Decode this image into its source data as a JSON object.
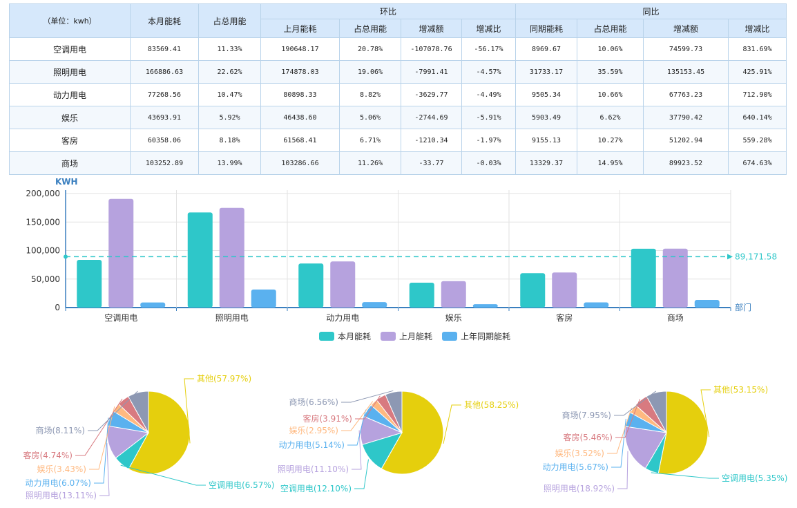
{
  "table": {
    "unit_header": "（单位：kwh）",
    "col_this_month": "本月能耗",
    "col_share": "占总用能",
    "group_mom": "环比",
    "group_yoy": "同比",
    "sub_headers": [
      "上月能耗",
      "占总用能",
      "增减额",
      "增减比",
      "同期能耗",
      "占总用能",
      "增减额",
      "增减比"
    ],
    "rows": [
      [
        "空调用电",
        "83569.41",
        "11.33%",
        "190648.17",
        "20.78%",
        "-107078.76",
        "-56.17%",
        "8969.67",
        "10.06%",
        "74599.73",
        "831.69%"
      ],
      [
        "照明用电",
        "166886.63",
        "22.62%",
        "174878.03",
        "19.06%",
        "-7991.41",
        "-4.57%",
        "31733.17",
        "35.59%",
        "135153.45",
        "425.91%"
      ],
      [
        "动力用电",
        "77268.56",
        "10.47%",
        "80898.33",
        "8.82%",
        "-3629.77",
        "-4.49%",
        "9505.34",
        "10.66%",
        "67763.23",
        "712.90%"
      ],
      [
        "娱乐",
        "43693.91",
        "5.92%",
        "46438.60",
        "5.06%",
        "-2744.69",
        "-5.91%",
        "5903.49",
        "6.62%",
        "37790.42",
        "640.14%"
      ],
      [
        "客房",
        "60358.06",
        "8.18%",
        "61568.41",
        "6.71%",
        "-1210.34",
        "-1.97%",
        "9155.13",
        "10.27%",
        "51202.94",
        "559.28%"
      ],
      [
        "商场",
        "103252.89",
        "13.99%",
        "103286.66",
        "11.26%",
        "-33.77",
        "-0.03%",
        "13329.37",
        "14.95%",
        "89923.52",
        "674.63%"
      ]
    ]
  },
  "chart_data": [
    {
      "type": "bar",
      "ylabel": "KWH",
      "xlabel": "部门",
      "categories": [
        "空调用电",
        "照明用电",
        "动力用电",
        "娱乐",
        "客房",
        "商场"
      ],
      "ylim": [
        0,
        200000
      ],
      "yticks": [
        "200,000",
        "150,000",
        "100,000",
        "50,000",
        "0"
      ],
      "series": [
        {
          "name": "本月能耗",
          "color": "#2ec7c9",
          "values": [
            83569.41,
            166886.63,
            77268.56,
            43693.91,
            60358.06,
            103252.89
          ]
        },
        {
          "name": "上月能耗",
          "color": "#b6a2de",
          "values": [
            190648.17,
            174878.03,
            80898.33,
            46438.6,
            61568.41,
            103286.66
          ]
        },
        {
          "name": "上年同期能耗",
          "color": "#5ab1ef",
          "values": [
            8969.67,
            31733.17,
            9505.34,
            5903.49,
            9155.13,
            13329.37
          ]
        }
      ],
      "markline": {
        "value": 89171.58,
        "label": "89,171.58",
        "color": "#2ec7c9"
      },
      "grid": true,
      "legend_position": "bottom"
    },
    {
      "type": "pie",
      "slices": [
        {
          "label": "其他(57.97%)",
          "value": 57.97,
          "color": "#e5cf0d"
        },
        {
          "label": "空调用电(6.57%)",
          "value": 6.57,
          "color": "#2ec7c9"
        },
        {
          "label": "照明用电(13.11%)",
          "value": 13.11,
          "color": "#b6a2de"
        },
        {
          "label": "动力用电(6.07%)",
          "value": 6.07,
          "color": "#5ab1ef"
        },
        {
          "label": "娱乐(3.43%)",
          "value": 3.43,
          "color": "#ffb980"
        },
        {
          "label": "客房(4.74%)",
          "value": 4.74,
          "color": "#d87a80"
        },
        {
          "label": "商场(8.11%)",
          "value": 8.11,
          "color": "#8d98b3"
        }
      ]
    },
    {
      "type": "pie",
      "slices": [
        {
          "label": "其他(58.25%)",
          "value": 58.25,
          "color": "#e5cf0d"
        },
        {
          "label": "空调用电(12.10%)",
          "value": 12.1,
          "color": "#2ec7c9"
        },
        {
          "label": "照明用电(11.10%)",
          "value": 11.1,
          "color": "#b6a2de"
        },
        {
          "label": "动力用电(5.14%)",
          "value": 5.14,
          "color": "#5ab1ef"
        },
        {
          "label": "娱乐(2.95%)",
          "value": 2.95,
          "color": "#ffb980"
        },
        {
          "label": "客房(3.91%)",
          "value": 3.91,
          "color": "#d87a80"
        },
        {
          "label": "商场(6.56%)",
          "value": 6.56,
          "color": "#8d98b3"
        }
      ]
    },
    {
      "type": "pie",
      "slices": [
        {
          "label": "其他(53.15%)",
          "value": 53.15,
          "color": "#e5cf0d"
        },
        {
          "label": "空调用电(5.35%)",
          "value": 5.35,
          "color": "#2ec7c9"
        },
        {
          "label": "照明用电(18.92%)",
          "value": 18.92,
          "color": "#b6a2de"
        },
        {
          "label": "动力用电(5.67%)",
          "value": 5.67,
          "color": "#5ab1ef"
        },
        {
          "label": "娱乐(3.52%)",
          "value": 3.52,
          "color": "#ffb980"
        },
        {
          "label": "客房(5.46%)",
          "value": 5.46,
          "color": "#d87a80"
        },
        {
          "label": "商场(7.95%)",
          "value": 7.95,
          "color": "#8d98b3"
        }
      ]
    }
  ]
}
